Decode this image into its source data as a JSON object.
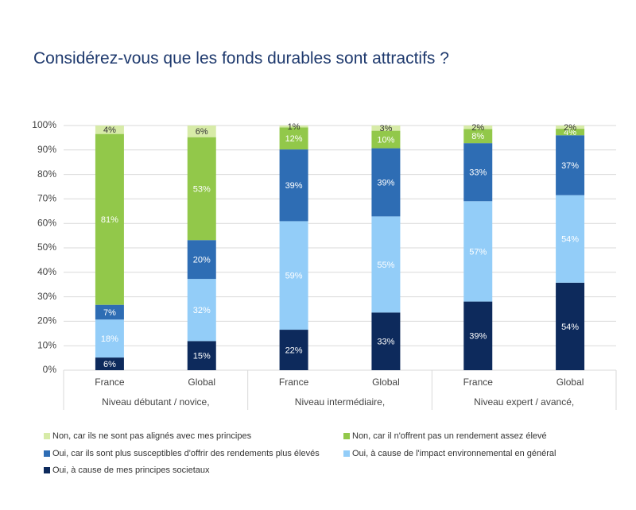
{
  "chart_data": {
    "type": "bar",
    "stacking": "percent",
    "title": "Considérez-vous que les fonds durables sont attractifs ?",
    "categories": [
      "France",
      "Global",
      "France",
      "Global",
      "France",
      "Global"
    ],
    "groups": [
      "Niveau débutant / novice,",
      "Niveau intermédiaire,",
      "Niveau expert / avancé,"
    ],
    "ylim": [
      0,
      100
    ],
    "yticks": [
      {
        "value": 0,
        "label": "0%"
      },
      {
        "value": 10,
        "label": "10%"
      },
      {
        "value": 20,
        "label": "20%"
      },
      {
        "value": 30,
        "label": "30%"
      },
      {
        "value": 40,
        "label": "40%"
      },
      {
        "value": 50,
        "label": "50%"
      },
      {
        "value": 60,
        "label": "60%"
      },
      {
        "value": 70,
        "label": "70%"
      },
      {
        "value": 80,
        "label": "80%"
      },
      {
        "value": 90,
        "label": "90%"
      },
      {
        "value": 100,
        "label": "100%"
      }
    ],
    "grid": true,
    "series": [
      {
        "name": "Oui, à cause de mes principes societaux",
        "color": "#0d2a5c",
        "values": [
          6,
          15,
          22,
          33,
          39,
          54
        ],
        "value_labels": [
          "6%",
          "15%",
          "22%",
          "33%",
          "39%",
          "54%"
        ]
      },
      {
        "name": "Oui, à cause de l'impact environnemental en général",
        "color": "#93cdf8",
        "values": [
          18,
          32,
          59,
          55,
          57,
          54
        ],
        "value_labels": [
          "18%",
          "32%",
          "59%",
          "55%",
          "57%",
          "54%"
        ]
      },
      {
        "name": "Oui, car ils sont plus susceptibles d'offrir des rendements plus élevés",
        "color": "#2e6db4",
        "values": [
          7,
          20,
          39,
          39,
          33,
          37
        ],
        "value_labels": [
          "7%",
          "20%",
          "39%",
          "39%",
          "33%",
          "37%"
        ]
      },
      {
        "name": "Non, car il n'offrent pas un rendement assez élevé",
        "color": "#92c84a",
        "values": [
          81,
          53,
          12,
          10,
          8,
          4
        ],
        "value_labels": [
          "81%",
          "53%",
          "12%",
          "10%",
          "8%",
          "4%"
        ]
      },
      {
        "name": "Non, car ils ne sont pas alignés avec mes principes",
        "color": "#d7eba8",
        "values": [
          4,
          6,
          1,
          3,
          2,
          2
        ],
        "value_labels": [
          "4%",
          "6%",
          "1%",
          "3%",
          "2%",
          "2%"
        ]
      }
    ]
  }
}
